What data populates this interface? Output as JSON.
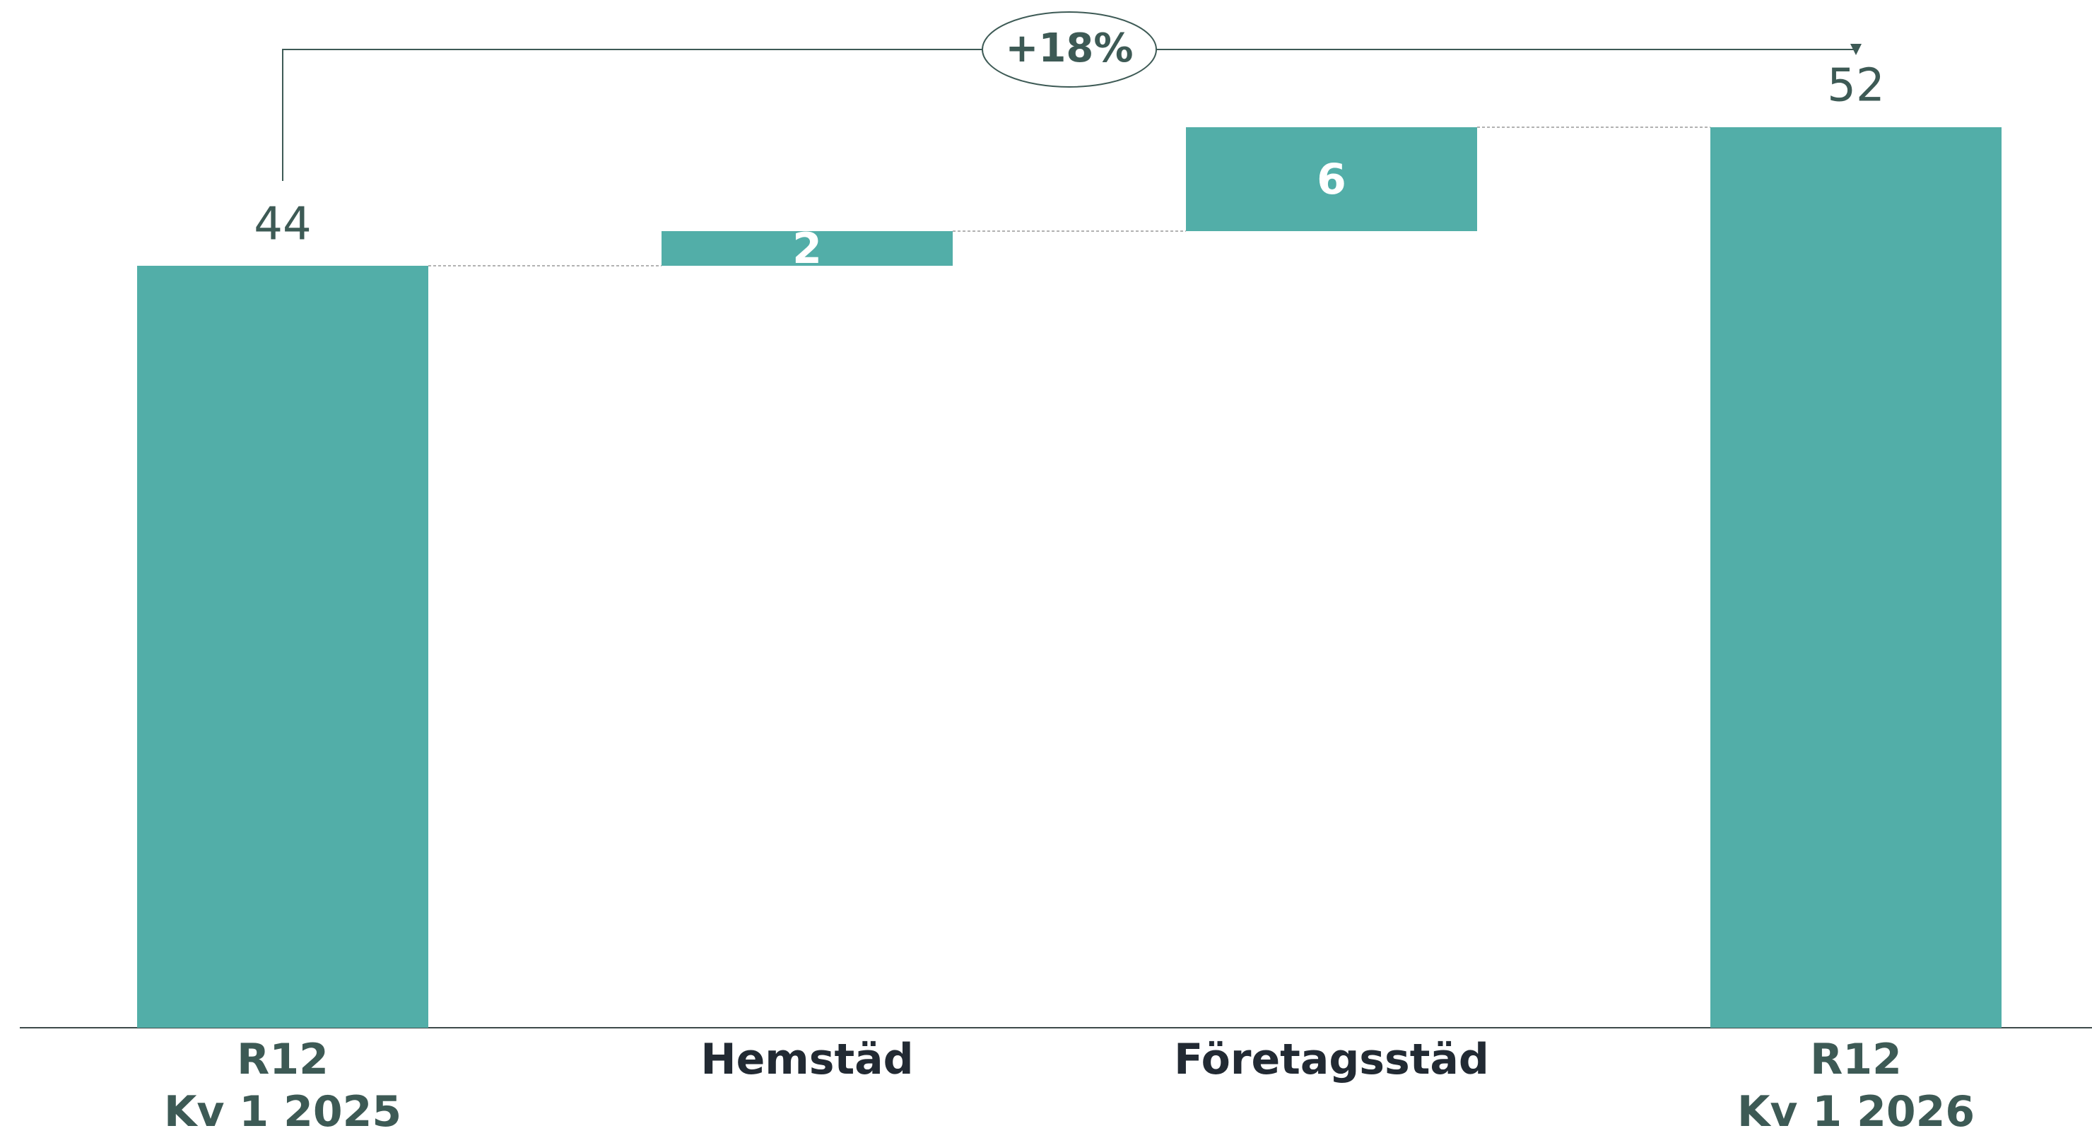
{
  "chart_data": {
    "type": "waterfall",
    "categories": [
      "R12\nKv 1 2025",
      "Hemstäd",
      "Företagsstäd",
      "R12\nKv 1 2026"
    ],
    "values": [
      44,
      2,
      6,
      52
    ],
    "color": "#52aea8",
    "annotation": "+18%"
  }
}
